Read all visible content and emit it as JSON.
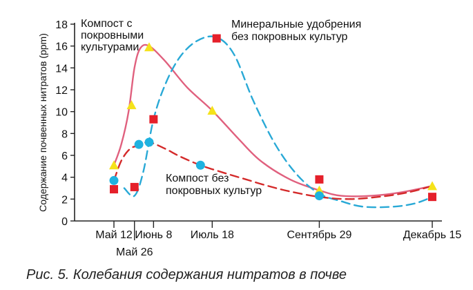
{
  "caption": "Рис. 5. Колебания содержания нитратов в почве",
  "colors": {
    "compost_cover": "#e0607e",
    "compost_cover_marker": "#f5e21a",
    "mineral": "#29a9d6",
    "mineral_marker": "#e5202a",
    "compost_no_cover": "#d42a2a",
    "compost_no_cover_marker": "#1fb2e0"
  },
  "chart_data": {
    "type": "line",
    "ylabel": "Содержание почвенных нитратов (ppm)",
    "xlabel": "",
    "ylim": [
      0,
      18
    ],
    "yticks": [
      0,
      2,
      4,
      6,
      8,
      10,
      12,
      14,
      16,
      18
    ],
    "x_ticks": [
      {
        "label": "Май 12",
        "x": 0
      },
      {
        "label": "Май 26",
        "x": 14
      },
      {
        "label": "Июнь 8",
        "x": 27
      },
      {
        "label": "Июль 18",
        "x": 67
      },
      {
        "label": "Сентябрь 29",
        "x": 140
      },
      {
        "label": "Декабрь 15",
        "x": 217
      }
    ],
    "grid": false,
    "series": [
      {
        "name": "Компост с покровными культурами",
        "style": "solid",
        "marker": "triangle",
        "points": [
          [
            0,
            5.1
          ],
          [
            12,
            10.6
          ],
          [
            24,
            15.9
          ],
          [
            67,
            10.1
          ],
          [
            140,
            2.8
          ],
          [
            217,
            3.2
          ]
        ],
        "curve": [
          [
            0,
            5.1
          ],
          [
            5,
            7
          ],
          [
            10,
            10
          ],
          [
            14,
            14
          ],
          [
            18,
            15.8
          ],
          [
            24,
            16
          ],
          [
            35,
            14.6
          ],
          [
            50,
            12.2
          ],
          [
            67,
            10.1
          ],
          [
            85,
            7.5
          ],
          [
            100,
            5.5
          ],
          [
            120,
            3.8
          ],
          [
            140,
            2.8
          ],
          [
            155,
            2.3
          ],
          [
            175,
            2.3
          ],
          [
            195,
            2.6
          ],
          [
            217,
            3.2
          ]
        ]
      },
      {
        "name": "Минеральные удобрения без покровных культур",
        "style": "dashed",
        "marker": "square",
        "points": [
          [
            0,
            2.9
          ],
          [
            14,
            3.1
          ],
          [
            27,
            9.3
          ],
          [
            70,
            16.7
          ],
          [
            140,
            3.8
          ],
          [
            217,
            2.2
          ]
        ],
        "curve": [
          [
            7,
            3
          ],
          [
            14,
            2.3
          ],
          [
            20,
            4.5
          ],
          [
            27,
            9.3
          ],
          [
            35,
            12.5
          ],
          [
            45,
            15
          ],
          [
            57,
            16.5
          ],
          [
            70,
            16.8
          ],
          [
            82,
            15.2
          ],
          [
            95,
            11
          ],
          [
            110,
            7
          ],
          [
            125,
            4.2
          ],
          [
            140,
            2.5
          ],
          [
            155,
            1.8
          ],
          [
            170,
            1.3
          ],
          [
            190,
            1.3
          ],
          [
            205,
            1.6
          ],
          [
            217,
            2.2
          ]
        ]
      },
      {
        "name": "Компост без покровных культур",
        "style": "dashed",
        "marker": "circle",
        "points": [
          [
            0,
            3.7
          ],
          [
            17,
            7
          ],
          [
            24,
            7.2
          ],
          [
            59,
            5.1
          ],
          [
            140,
            2.3
          ]
        ],
        "curve": [
          [
            0,
            3.7
          ],
          [
            5,
            5.5
          ],
          [
            11,
            6.6
          ],
          [
            17,
            6.9
          ],
          [
            24,
            7.2
          ],
          [
            35,
            6.6
          ],
          [
            45,
            5.9
          ],
          [
            59,
            5.1
          ],
          [
            75,
            4.4
          ],
          [
            90,
            3.8
          ],
          [
            105,
            3.2
          ],
          [
            120,
            2.7
          ],
          [
            140,
            2.2
          ],
          [
            160,
            2
          ],
          [
            180,
            2.2
          ],
          [
            200,
            2.6
          ],
          [
            217,
            3.2
          ]
        ]
      }
    ],
    "annotations": [
      {
        "series": 0,
        "lines": [
          "Компост с",
          "покровными",
          "культурами"
        ]
      },
      {
        "series": 1,
        "lines": [
          "Минеральные удобрения",
          "без покровных культур"
        ]
      },
      {
        "series": 2,
        "lines": [
          "Компост без",
          "покровных культур"
        ]
      }
    ]
  }
}
